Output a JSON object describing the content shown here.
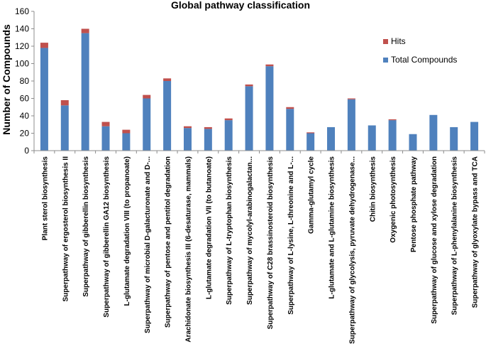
{
  "chart_data": {
    "type": "bar",
    "stacked": true,
    "title": "Global pathway classification",
    "xlabel": "",
    "ylabel": "Number of Compounds",
    "ylim": [
      0,
      160
    ],
    "yticks": [
      0,
      20,
      40,
      60,
      80,
      100,
      120,
      140,
      160
    ],
    "grid": false,
    "legend_position": "top-right",
    "categories": [
      "Plant sterol biosynthesis",
      "Superpathway of ergosterol biosynthesis II",
      "Superpathway of gibberellin biosynthesis",
      "Superpathway of gibberellin GA12 biosynthesis",
      "L-glutamate degradation VIII (to propanoate)",
      "Superpathway of microbial D-galacturonate and D-...",
      "Superpathway of pentose and pentitol degradation",
      "Arachidonate biosynthesis III (6-desaturase, mammals)",
      "L-glutamate degradation VII (to butanoate)",
      "Superpathway of L-tryptophan biosynthesis",
      "Superpathway of mycolyl-arabinogalactan...",
      "Superpathway of C28 brassinosteroid biosynthesis",
      "Superpathway of L-lysine, L-threonine and L-...",
      "Gamma-glutamyl cycle",
      "L-glutamate and L-glutamine biosynthesis",
      "Superpathway of glycolysis, pyruvate dehydrogenase...",
      "Chitin biosynthesis",
      "Oxygenic photosynthesis",
      "Pentose phosphate pathway",
      "Superpathway of glucose and xylose degradation",
      "Superpathway of L-phenylalanine biosynthesis",
      "Superpathway of glyoxylate bypass and TCA"
    ],
    "series": [
      {
        "name": "Total Compounds",
        "color": "#4f81bd",
        "values": [
          118,
          52,
          135,
          28,
          20,
          60,
          80,
          26,
          25,
          35,
          74,
          97,
          48,
          20,
          27,
          59,
          29,
          35,
          19,
          41,
          27,
          33
        ]
      },
      {
        "name": "Hits",
        "color": "#c0504d",
        "values": [
          6,
          6,
          5,
          5,
          4,
          4,
          3,
          2,
          2,
          2,
          2,
          2,
          2,
          1,
          0,
          1,
          0,
          1,
          0,
          0,
          0,
          0
        ]
      }
    ],
    "legend": [
      {
        "name": "Hits",
        "color": "#c0504d"
      },
      {
        "name": "Total Compounds",
        "color": "#4f81bd"
      }
    ]
  }
}
